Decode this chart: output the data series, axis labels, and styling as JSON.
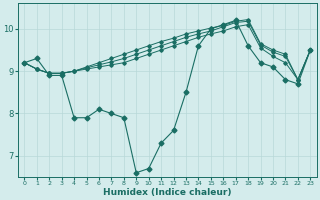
{
  "xlabel": "Humidex (Indice chaleur)",
  "ylabel": "",
  "bg_color": "#d4ecec",
  "grid_color": "#b8d8d8",
  "line_color": "#1a6e64",
  "xlim": [
    -0.5,
    23.5
  ],
  "ylim": [
    6.5,
    10.6
  ],
  "yticks": [
    7,
    8,
    9,
    10
  ],
  "xticks": [
    0,
    1,
    2,
    3,
    4,
    5,
    6,
    7,
    8,
    9,
    10,
    11,
    12,
    13,
    14,
    15,
    16,
    17,
    18,
    19,
    20,
    21,
    22,
    23
  ],
  "series_main": [
    9.2,
    9.3,
    8.9,
    8.9,
    7.9,
    7.9,
    8.1,
    8.0,
    7.9,
    6.6,
    6.7,
    7.3,
    7.6,
    8.5,
    9.6,
    10.0,
    10.1,
    10.2,
    9.6,
    9.2,
    9.1,
    8.8,
    8.7,
    9.5
  ],
  "series_smooth": [
    [
      9.2,
      9.05,
      8.95,
      8.95,
      9.0,
      9.05,
      9.1,
      9.15,
      9.2,
      9.3,
      9.4,
      9.5,
      9.6,
      9.7,
      9.8,
      9.88,
      9.95,
      10.05,
      10.1,
      9.55,
      9.35,
      9.2,
      8.8,
      9.5
    ],
    [
      9.2,
      9.05,
      8.95,
      8.95,
      9.0,
      9.08,
      9.15,
      9.22,
      9.3,
      9.4,
      9.5,
      9.6,
      9.7,
      9.8,
      9.88,
      9.95,
      10.05,
      10.15,
      10.18,
      9.62,
      9.45,
      9.35,
      8.8,
      9.5
    ],
    [
      9.2,
      9.05,
      8.95,
      8.95,
      9.0,
      9.1,
      9.2,
      9.3,
      9.4,
      9.5,
      9.6,
      9.7,
      9.78,
      9.88,
      9.95,
      10.02,
      10.08,
      10.18,
      10.22,
      9.65,
      9.5,
      9.4,
      8.8,
      9.5
    ]
  ]
}
